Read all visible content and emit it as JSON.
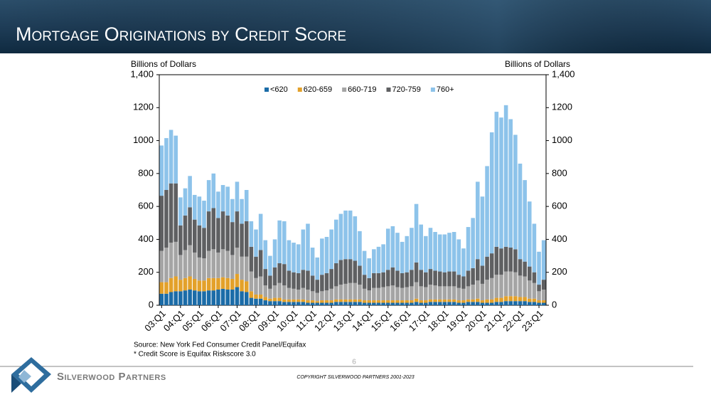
{
  "header": {
    "title": "Mortgage Originations by Credit Score"
  },
  "chart_data": {
    "type": "bar",
    "stacked": true,
    "y_label": "Billions of Dollars",
    "y2_label": "Billions of Dollars",
    "categories": [
      "03:Q1",
      null,
      null,
      null,
      "04:Q1",
      null,
      null,
      null,
      "05:Q1",
      null,
      null,
      null,
      "06:Q1",
      null,
      null,
      null,
      "07:Q1",
      null,
      null,
      null,
      "08:Q1",
      null,
      null,
      null,
      "09:Q1",
      null,
      null,
      null,
      "10:Q1",
      null,
      null,
      null,
      "11:Q1",
      null,
      null,
      null,
      "12:Q1",
      null,
      null,
      null,
      "13:Q1",
      null,
      null,
      null,
      "14:Q1",
      null,
      null,
      null,
      "15:Q1",
      null,
      null,
      null,
      "16:Q1",
      null,
      null,
      null,
      "17:Q1",
      null,
      null,
      null,
      "18:Q1",
      null,
      null,
      null,
      "19:Q1",
      null,
      null,
      null,
      "20:Q1",
      null,
      null,
      null,
      "21:Q1",
      null,
      null,
      null,
      "22:Q1",
      null,
      null,
      null,
      "23:Q1",
      null
    ],
    "series": [
      {
        "name": "<620",
        "color": "#1b6ca8",
        "values": [
          70,
          70,
          80,
          85,
          85,
          90,
          95,
          90,
          85,
          85,
          90,
          90,
          95,
          100,
          95,
          95,
          110,
          85,
          80,
          45,
          40,
          40,
          30,
          25,
          25,
          25,
          20,
          20,
          20,
          20,
          20,
          15,
          15,
          15,
          15,
          15,
          15,
          20,
          20,
          20,
          20,
          20,
          20,
          15,
          15,
          15,
          15,
          15,
          15,
          15,
          15,
          15,
          15,
          15,
          20,
          15,
          15,
          20,
          20,
          20,
          20,
          20,
          20,
          15,
          15,
          20,
          20,
          20,
          15,
          15,
          15,
          20,
          20,
          25,
          25,
          25,
          25,
          25,
          20,
          20,
          15,
          15
        ]
      },
      {
        "name": "620-659",
        "color": "#e3a12a",
        "values": [
          70,
          70,
          85,
          90,
          70,
          75,
          80,
          70,
          65,
          65,
          75,
          75,
          70,
          70,
          70,
          65,
          80,
          70,
          65,
          40,
          25,
          25,
          20,
          15,
          20,
          20,
          15,
          15,
          15,
          15,
          15,
          15,
          15,
          10,
          15,
          15,
          15,
          15,
          15,
          15,
          15,
          15,
          15,
          15,
          15,
          15,
          15,
          15,
          15,
          15,
          15,
          15,
          15,
          15,
          20,
          15,
          15,
          15,
          15,
          15,
          15,
          15,
          15,
          15,
          15,
          15,
          15,
          20,
          15,
          20,
          20,
          25,
          25,
          30,
          30,
          30,
          25,
          25,
          20,
          20,
          15,
          15
        ]
      },
      {
        "name": "660-719",
        "color": "#a5a5a5",
        "values": [
          190,
          210,
          215,
          210,
          150,
          170,
          190,
          160,
          140,
          135,
          165,
          175,
          155,
          170,
          165,
          145,
          160,
          140,
          150,
          120,
          100,
          110,
          70,
          60,
          75,
          90,
          85,
          70,
          65,
          60,
          70,
          65,
          55,
          50,
          55,
          60,
          70,
          80,
          90,
          95,
          100,
          100,
          90,
          70,
          60,
          75,
          75,
          80,
          85,
          90,
          80,
          75,
          80,
          85,
          100,
          85,
          80,
          90,
          85,
          80,
          80,
          80,
          80,
          75,
          70,
          80,
          90,
          110,
          100,
          120,
          130,
          140,
          140,
          150,
          150,
          145,
          130,
          125,
          110,
          95,
          55,
          65
        ]
      },
      {
        "name": "720-759",
        "color": "#5f6062",
        "values": [
          335,
          350,
          360,
          355,
          180,
          210,
          230,
          200,
          195,
          185,
          240,
          250,
          210,
          230,
          215,
          200,
          220,
          200,
          215,
          150,
          130,
          160,
          100,
          80,
          110,
          120,
          130,
          105,
          100,
          100,
          110,
          115,
          95,
          80,
          100,
          105,
          120,
          140,
          150,
          150,
          145,
          135,
          115,
          85,
          75,
          90,
          90,
          90,
          100,
          110,
          100,
          90,
          90,
          100,
          120,
          100,
          90,
          95,
          90,
          90,
          85,
          90,
          90,
          80,
          75,
          95,
          100,
          130,
          110,
          140,
          150,
          170,
          160,
          150,
          145,
          140,
          100,
          90,
          85,
          65,
          40,
          60
        ]
      },
      {
        "name": "760+",
        "color": "#8dc3ea",
        "values": [
          305,
          315,
          325,
          290,
          170,
          165,
          190,
          150,
          175,
          165,
          190,
          210,
          160,
          160,
          175,
          140,
          180,
          150,
          190,
          155,
          165,
          220,
          175,
          120,
          170,
          260,
          260,
          185,
          180,
          175,
          245,
          285,
          170,
          135,
          220,
          220,
          240,
          265,
          280,
          295,
          295,
          270,
          210,
          145,
          120,
          145,
          160,
          170,
          250,
          250,
          230,
          190,
          220,
          255,
          355,
          275,
          220,
          250,
          235,
          225,
          230,
          235,
          240,
          215,
          170,
          265,
          305,
          470,
          420,
          550,
          735,
          820,
          795,
          860,
          780,
          695,
          580,
          495,
          395,
          295,
          200,
          240
        ]
      }
    ],
    "ylim": [
      0,
      1400
    ],
    "yticks": [
      0,
      200,
      400,
      600,
      800,
      1000,
      1200,
      {
        "value": 1400,
        "label": "1,400"
      }
    ],
    "y2lim": [
      0,
      1400
    ],
    "y2ticks": [
      0,
      200,
      400,
      600,
      800,
      1000,
      1200,
      {
        "value": 1400,
        "label": "1,400"
      }
    ],
    "legend": "top",
    "grid": false
  },
  "source": "Source: New York Fed Consumer Credit Panel/Equifax",
  "note": "* Credit Score is Equifax Riskscore 3.0",
  "page_number": "6",
  "footer": {
    "brand": "Silverwood Partners",
    "copyright": "COPYRIGHT SILVERWOOD PARTNERS 2001-2023"
  }
}
